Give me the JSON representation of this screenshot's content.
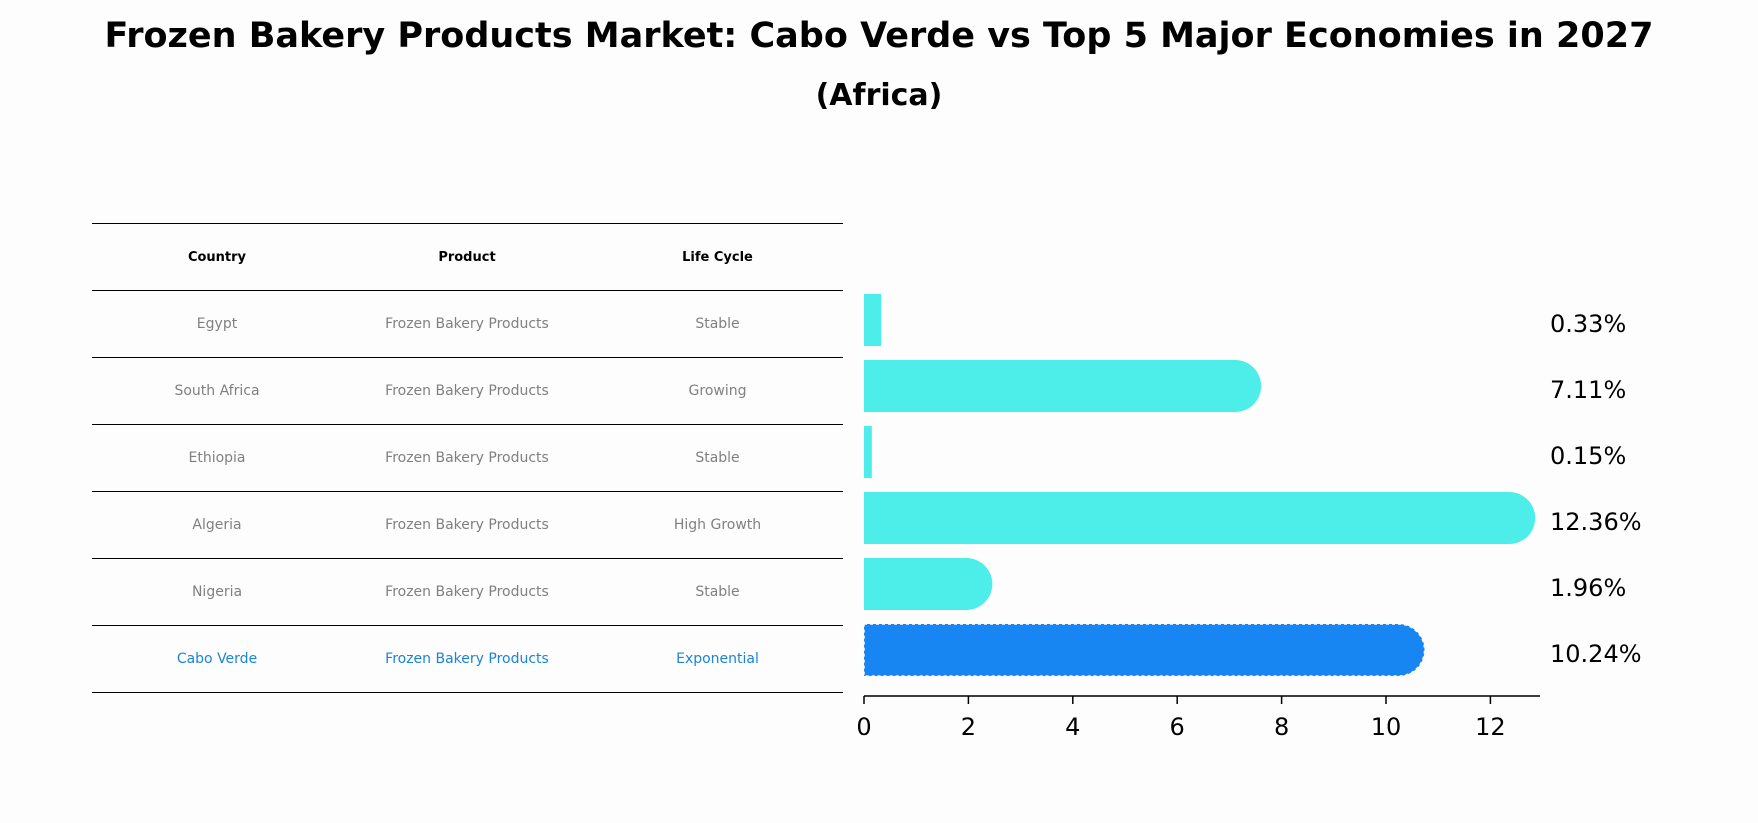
{
  "title": "Frozen Bakery Products Market: Cabo Verde vs Top 5 Major Economies in 2027",
  "subtitle": "(Africa)",
  "table": {
    "headers": [
      "Country",
      "Product",
      "Life Cycle"
    ],
    "rows": [
      [
        "Egypt",
        "Frozen Bakery Products",
        "Stable"
      ],
      [
        "South Africa",
        "Frozen Bakery Products",
        "Growing"
      ],
      [
        "Ethiopia",
        "Frozen Bakery Products",
        "Stable"
      ],
      [
        "Algeria",
        "Frozen Bakery Products",
        "High Growth"
      ],
      [
        "Nigeria",
        "Frozen Bakery Products",
        "Stable"
      ],
      [
        "Cabo Verde",
        "Frozen Bakery Products",
        "Exponential"
      ]
    ],
    "highlight_row": 5
  },
  "chart_data": {
    "type": "bar",
    "orientation": "horizontal",
    "categories": [
      "Egypt",
      "South Africa",
      "Ethiopia",
      "Algeria",
      "Nigeria",
      "Cabo Verde"
    ],
    "values": [
      0.33,
      7.11,
      0.15,
      12.36,
      1.96,
      10.24
    ],
    "value_labels": [
      "0.33%",
      "7.11%",
      "0.15%",
      "12.36%",
      "1.96%",
      "10.24%"
    ],
    "xlim": [
      0,
      13
    ],
    "xticks": [
      0,
      2,
      4,
      6,
      8,
      10,
      12
    ],
    "colors": {
      "default": "#4deeea",
      "highlight": "#1785f2"
    },
    "highlight_index": 5
  }
}
